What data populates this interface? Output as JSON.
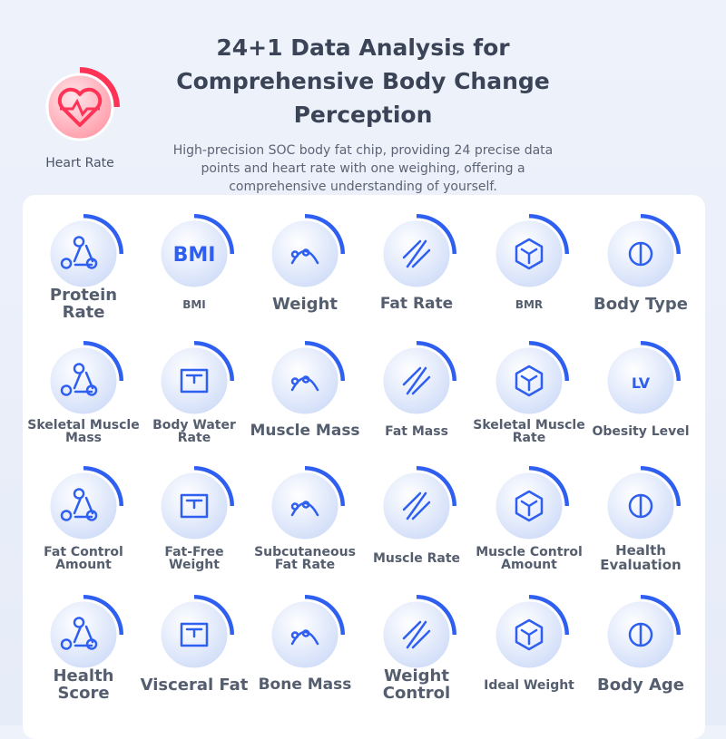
{
  "header": {
    "title": [
      "24+1 Data Analysis for",
      "Comprehensive Body Change",
      "Perception"
    ],
    "heart_rate_label": "Heart Rate",
    "subtitle": [
      "High-precision SOC body fat chip, providing 24 precise data",
      "points and heart rate with one weighing, offering a",
      "comprehensive understanding of yourself."
    ]
  },
  "items": [
    {
      "label": "Protein Rate"
    },
    {
      "label": "BMI",
      "icon_text": "BMI"
    },
    {
      "label": "Weight"
    },
    {
      "label": "Fat Rate"
    },
    {
      "label": "BMR"
    },
    {
      "label": "Body Type"
    },
    {
      "label": "Skeletal Muscle Mass"
    },
    {
      "label": "Body Water Rate"
    },
    {
      "label": "Muscle Mass"
    },
    {
      "label": "Fat Mass"
    },
    {
      "label": "Skeletal Muscle Rate"
    },
    {
      "label": "Obesity Level",
      "icon_text": "LV"
    },
    {
      "label": "Fat Control Amount"
    },
    {
      "label": "Fat-Free Weight"
    },
    {
      "label": "Subcutaneous Fat Rate"
    },
    {
      "label": "Muscle Rate"
    },
    {
      "label": "Muscle Control Amount"
    },
    {
      "label": "Health Evaluation"
    },
    {
      "label": "Health Score"
    },
    {
      "label": "Visceral Fat"
    },
    {
      "label": "Bone Mass"
    },
    {
      "label": "Weight Control"
    },
    {
      "label": "Ideal Weight"
    },
    {
      "label": "Body Age"
    }
  ]
}
